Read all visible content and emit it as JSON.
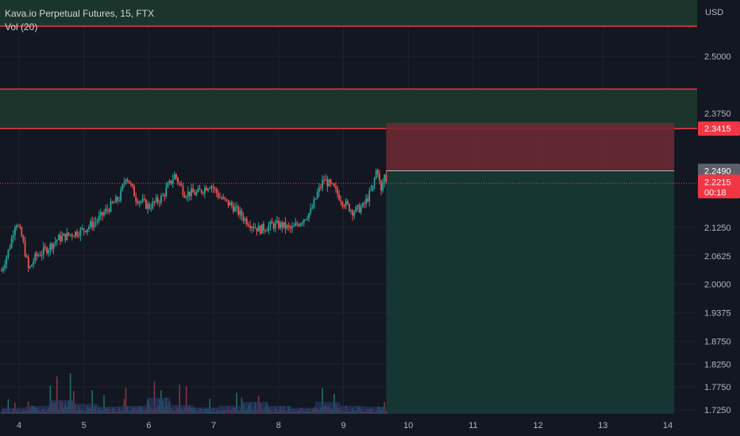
{
  "header": {
    "symbol_line": "Kava.io Perpetual Futures, 15, FTX",
    "volume_line": "Vol (20)"
  },
  "chart_data": {
    "type": "candlestick",
    "currency": "USD",
    "y_ticks": [
      "2.5000",
      "2.3750",
      "2.1250",
      "2.0625",
      "2.0000",
      "1.9375",
      "1.8750",
      "1.8250",
      "1.7750",
      "1.7250"
    ],
    "x_ticks": [
      "4",
      "5",
      "6",
      "7",
      "8",
      "9",
      "10",
      "11",
      "12",
      "13",
      "14"
    ],
    "ylim": [
      1.725,
      2.578
    ],
    "xlim": [
      3.73,
      14.42
    ],
    "price_path": [
      [
        3.73,
        2.03
      ],
      [
        3.85,
        2.08
      ],
      [
        3.95,
        2.14
      ],
      [
        4.05,
        2.1
      ],
      [
        4.15,
        2.03
      ],
      [
        4.25,
        2.06
      ],
      [
        4.45,
        2.08
      ],
      [
        4.6,
        2.1
      ],
      [
        4.8,
        2.11
      ],
      [
        5.0,
        2.12
      ],
      [
        5.2,
        2.14
      ],
      [
        5.4,
        2.17
      ],
      [
        5.55,
        2.19
      ],
      [
        5.65,
        2.24
      ],
      [
        5.8,
        2.19
      ],
      [
        6.0,
        2.17
      ],
      [
        6.2,
        2.19
      ],
      [
        6.4,
        2.24
      ],
      [
        6.55,
        2.2
      ],
      [
        6.75,
        2.2
      ],
      [
        6.95,
        2.22
      ],
      [
        7.1,
        2.19
      ],
      [
        7.3,
        2.17
      ],
      [
        7.5,
        2.14
      ],
      [
        7.7,
        2.12
      ],
      [
        7.9,
        2.13
      ],
      [
        8.05,
        2.13
      ],
      [
        8.2,
        2.12
      ],
      [
        8.35,
        2.14
      ],
      [
        8.5,
        2.16
      ],
      [
        8.6,
        2.2
      ],
      [
        8.7,
        2.23
      ],
      [
        8.85,
        2.21
      ],
      [
        9.0,
        2.18
      ],
      [
        9.15,
        2.16
      ],
      [
        9.3,
        2.17
      ],
      [
        9.45,
        2.21
      ],
      [
        9.52,
        2.26
      ],
      [
        9.58,
        2.2
      ],
      [
        9.63,
        2.24
      ],
      [
        9.66,
        2.23
      ]
    ],
    "volume_levels": [
      0.15,
      0.2,
      0.35,
      0.25,
      0.18,
      0.2,
      0.4,
      0.22,
      0.16,
      0.2,
      0.3,
      0.2,
      0.15,
      0.3,
      0.2,
      0.18
    ],
    "zones": [
      {
        "from": 2.566,
        "to": 2.625,
        "color": "#1e3b2e"
      },
      {
        "from": 2.3415,
        "to": 2.428,
        "color": "#1e3b2e"
      }
    ],
    "red_lines": [
      2.625,
      2.566,
      2.428,
      2.3415
    ],
    "position": {
      "x_start": 9.66,
      "x_end": 14.1,
      "entry": 2.249,
      "stop": 2.354,
      "target": 1.725,
      "risk_color": "#6b2a33",
      "reward_color": "#173a36"
    },
    "current_price": 2.2215,
    "price_tags": [
      {
        "label": "2.3415",
        "value": 2.3415,
        "color": "#f23645"
      },
      {
        "label": "2.2490",
        "value": 2.249,
        "color": "#5d606b"
      }
    ],
    "current_tag": {
      "price": "2.2215",
      "countdown": "00:18",
      "color": "#f23645"
    },
    "colors": {
      "background": "#131722",
      "up": "#26a69a",
      "down": "#ef5350",
      "grid": "#1e222d",
      "zone_line": "#f23645",
      "volume_up": "#1f7a60",
      "volume_down": "#8b3a40",
      "volume_avg": "#2a3a6e"
    }
  }
}
